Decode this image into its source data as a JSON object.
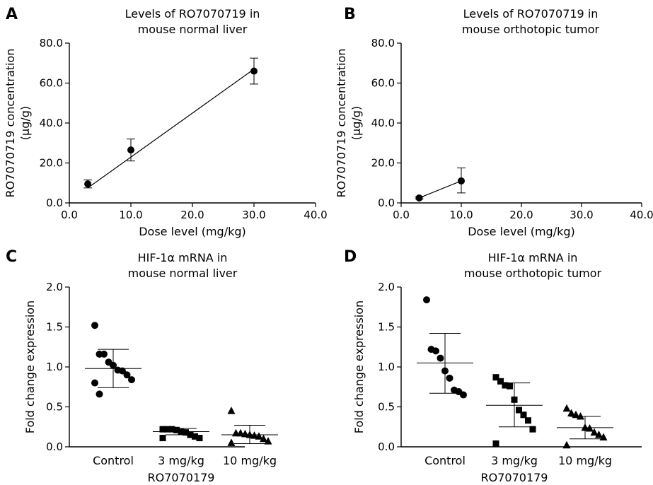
{
  "chart_data": [
    {
      "panel": "A",
      "type": "scatter",
      "title": [
        "Levels of RO7070719 in",
        "mouse normal liver"
      ],
      "xlabel": "Dose level (mg/kg)",
      "ylabel": [
        "RO7070719 concentration",
        "(μg/g)"
      ],
      "xlim": [
        0,
        40
      ],
      "ylim": [
        0,
        80
      ],
      "xticks": [
        "0.0",
        "10.0",
        "20.0",
        "30.0",
        "40.0"
      ],
      "yticks": [
        "0.0",
        "20.0",
        "40.0",
        "60.0",
        "80.0"
      ],
      "points": [
        {
          "x": 3,
          "y": 9.5,
          "err_low": 7.5,
          "err_high": 11.5
        },
        {
          "x": 10,
          "y": 26.5,
          "err_low": 21.0,
          "err_high": 32.0
        },
        {
          "x": 30,
          "y": 66.0,
          "err_low": 59.5,
          "err_high": 72.5
        }
      ],
      "fit_line": [
        [
          3,
          7.5
        ],
        [
          30,
          67.0
        ]
      ]
    },
    {
      "panel": "B",
      "type": "line",
      "title": [
        "Levels of RO7070719 in",
        "mouse orthotopic tumor"
      ],
      "xlabel": "Dose level (mg/kg)",
      "ylabel": [
        "RO7070719 concentration",
        "(μg/g)"
      ],
      "xlim": [
        0,
        40
      ],
      "ylim": [
        0,
        80
      ],
      "xticks": [
        "0.0",
        "10.0",
        "20.0",
        "30.0",
        "40.0"
      ],
      "yticks": [
        "0.0",
        "20.0",
        "40.0",
        "60.0",
        "80.0"
      ],
      "points": [
        {
          "x": 3,
          "y": 2.5,
          "err_low": 2.0,
          "err_high": 3.0
        },
        {
          "x": 10,
          "y": 11.0,
          "err_low": 5.0,
          "err_high": 17.5
        }
      ],
      "fit_line": [
        [
          3,
          2.5
        ],
        [
          10,
          11.0
        ]
      ]
    },
    {
      "panel": "C",
      "type": "scatter",
      "title": [
        "HIF-1α mRNA in",
        "mouse normal liver"
      ],
      "ylabel": "Fold change expression",
      "ylim": [
        0,
        2
      ],
      "yticks": [
        "0.0",
        "0.5",
        "1.0",
        "1.5",
        "2.0"
      ],
      "categories": [
        "Control",
        "3 mg/kg",
        "10 mg/kg"
      ],
      "group_label": "RO7070179",
      "groups": [
        {
          "marker": "circle",
          "mean": 0.98,
          "sd_low": 0.74,
          "sd_high": 1.22,
          "points": [
            1.52,
            1.16,
            1.16,
            1.06,
            1.02,
            0.96,
            0.95,
            0.9,
            0.84,
            0.8,
            0.66
          ]
        },
        {
          "marker": "square",
          "mean": 0.19,
          "sd_low": 0.15,
          "sd_high": 0.23,
          "points": [
            0.22,
            0.22,
            0.22,
            0.21,
            0.19,
            0.18,
            0.15,
            0.13,
            0.11,
            0.11
          ]
        },
        {
          "marker": "triangle",
          "mean": 0.15,
          "sd_low": 0.04,
          "sd_high": 0.27,
          "points": [
            0.45,
            0.17,
            0.17,
            0.16,
            0.15,
            0.14,
            0.13,
            0.1,
            0.07,
            0.05
          ]
        }
      ]
    },
    {
      "panel": "D",
      "type": "scatter",
      "title": [
        "HIF-1α mRNA in",
        "mouse orthotopic tumor"
      ],
      "ylabel": "Fold change expression",
      "ylim": [
        0,
        2
      ],
      "yticks": [
        "0.0",
        "0.5",
        "1.0",
        "1.5",
        "2.0"
      ],
      "categories": [
        "Control",
        "3 mg/kg",
        "10 mg/kg"
      ],
      "group_label": "RO7070179",
      "groups": [
        {
          "marker": "circle",
          "mean": 1.05,
          "sd_low": 0.67,
          "sd_high": 1.42,
          "points": [
            1.84,
            1.22,
            1.2,
            1.11,
            0.95,
            0.86,
            0.71,
            0.69,
            0.65
          ]
        },
        {
          "marker": "square",
          "mean": 0.52,
          "sd_low": 0.25,
          "sd_high": 0.8,
          "points": [
            0.87,
            0.82,
            0.77,
            0.76,
            0.59,
            0.46,
            0.4,
            0.33,
            0.22,
            0.04
          ]
        },
        {
          "marker": "triangle",
          "mean": 0.24,
          "sd_low": 0.1,
          "sd_high": 0.38,
          "points": [
            0.48,
            0.42,
            0.4,
            0.38,
            0.24,
            0.23,
            0.18,
            0.15,
            0.12,
            0.02
          ]
        }
      ]
    }
  ]
}
